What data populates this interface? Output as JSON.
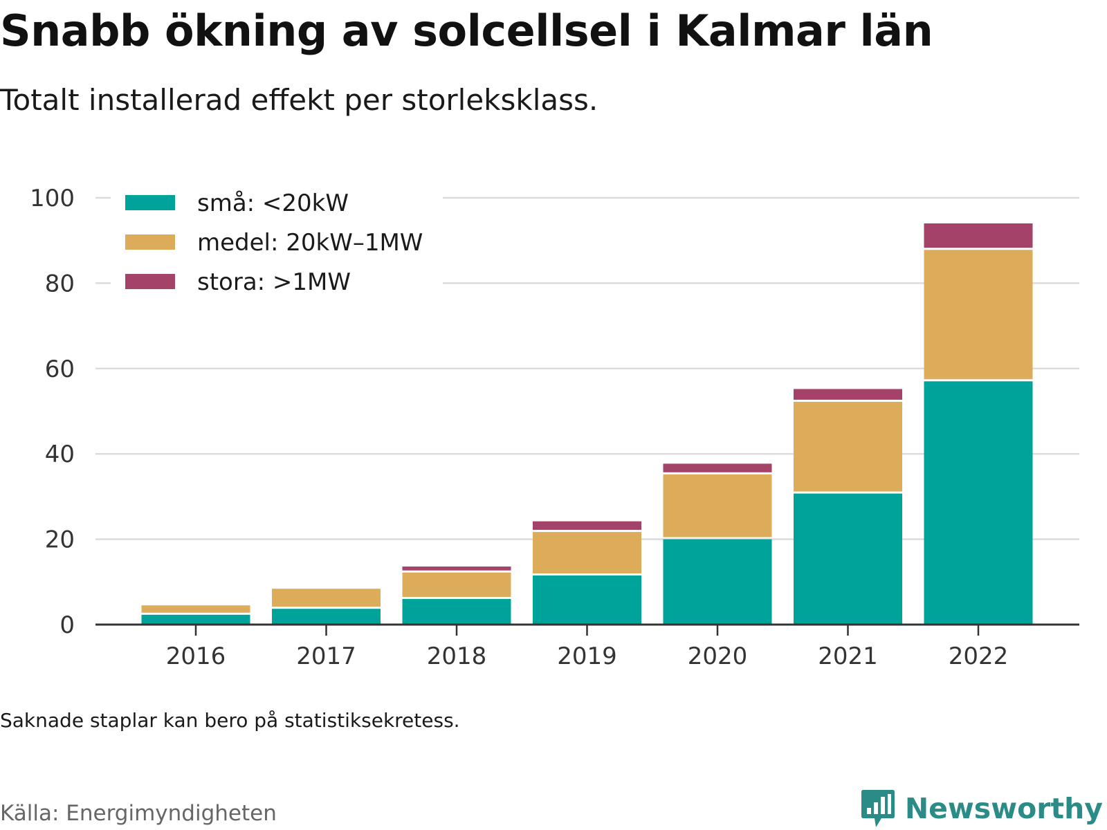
{
  "header": {
    "title": "Snabb ökning av solcellsel i Kalmar län",
    "subtitle": "Totalt installerad effekt per storleksklass."
  },
  "footer": {
    "note": "Saknade staplar kan bero på statistiksekretess.",
    "source": "Källa: Energimyndigheten",
    "brand": "Newsworthy",
    "brand_icon": "bar-chart-speech-bubble-icon"
  },
  "colors": {
    "sma": "#00a39a",
    "medel": "#dcac5b",
    "stora": "#a5426a",
    "grid": "#dcdcdc",
    "axis": "#333333",
    "brand": "#2a8b87"
  },
  "chart_data": {
    "type": "bar",
    "stacked": true,
    "categories": [
      "2016",
      "2017",
      "2018",
      "2019",
      "2020",
      "2021",
      "2022"
    ],
    "series": [
      {
        "name": "små: <20kW",
        "color": "#00a39a",
        "values": [
          2.3,
          3.7,
          6.0,
          11.5,
          20.0,
          30.7,
          57.0
        ]
      },
      {
        "name": "medel: 20kW–1MW",
        "color": "#dcac5b",
        "values": [
          2.2,
          4.7,
          6.2,
          10.2,
          15.2,
          21.5,
          30.8
        ]
      },
      {
        "name": "stora: >1MW",
        "color": "#a5426a",
        "values": [
          0.0,
          0.0,
          1.4,
          2.5,
          2.5,
          3.0,
          6.2
        ]
      }
    ],
    "ylim": [
      0,
      100
    ],
    "yticks": [
      "0",
      "20",
      "40",
      "60",
      "80",
      "100"
    ],
    "grid": true,
    "legend_position": "top-left",
    "xlabel": "",
    "ylabel": ""
  }
}
